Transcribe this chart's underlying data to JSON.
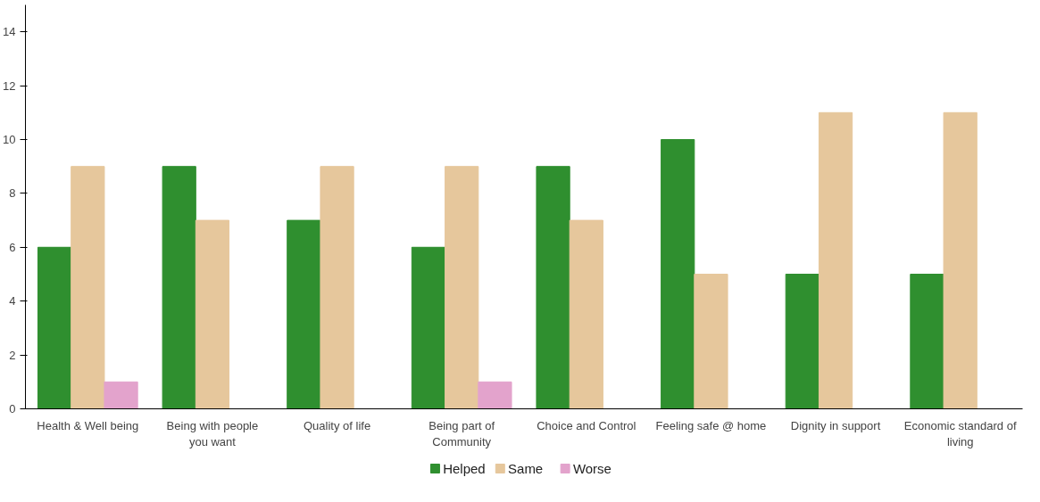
{
  "chart_data": {
    "type": "bar",
    "categories": [
      "Health & Well being",
      "Being with people you want",
      "Quality of life",
      "Being part of Community",
      "Choice and Control",
      "Feeling safe @ home",
      "Dignity in support",
      "Economic standard of living"
    ],
    "series": [
      {
        "name": "Helped",
        "color": "#2f8f2f",
        "values": [
          6,
          9,
          7,
          6,
          9,
          10,
          5,
          5
        ]
      },
      {
        "name": "Same",
        "color": "#e6c79c",
        "values": [
          9,
          7,
          9,
          9,
          7,
          5,
          11,
          11
        ]
      },
      {
        "name": "Worse",
        "color": "#e3a3cc",
        "values": [
          1,
          null,
          null,
          1,
          null,
          null,
          null,
          null
        ]
      }
    ],
    "ylim": [
      0,
      15
    ],
    "yticks": [
      0,
      2,
      4,
      6,
      8,
      10,
      12,
      14
    ],
    "grid": false,
    "legend": "bottom"
  }
}
